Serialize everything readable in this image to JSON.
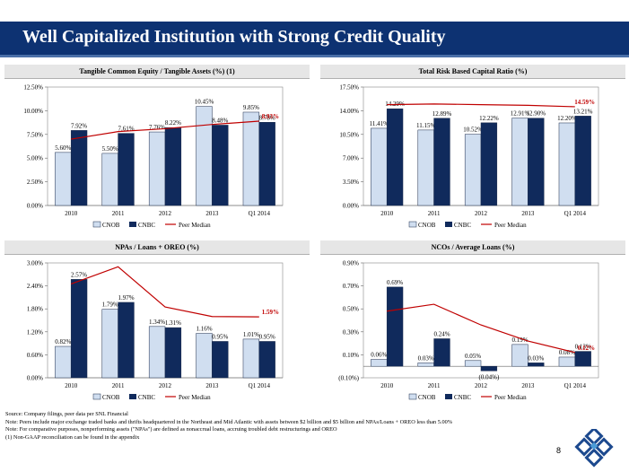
{
  "title": "Well Capitalized Institution with Strong Credit Quality",
  "page_number": "8",
  "footnotes": [
    "Source: Company filings, peer data per SNL Financial",
    "Note: Peers include major exchange traded banks and thrifts headquartered in the Northeast and Mid Atlantic with assets between $2 billion and $5 billion and NPAs/Loans + OREO less than 5.00%",
    "Note: For comparative purposes, nonperforming assets (\"NPAs\") are defined as nonaccrual loans, accruing troubled debt restructurings and OREO",
    "(1)    Non-GAAP reconciliation can be found in the appendix"
  ],
  "colors": {
    "cnob": "#d0def0",
    "cnbc": "#102a5c",
    "median": "#c00000",
    "title_bg": "#0d3272"
  },
  "chart_data": [
    {
      "type": "bar",
      "title": "Tangible Common Equity / Tangible Assets (%) (1)",
      "categories": [
        "2010",
        "2011",
        "2012",
        "2013",
        "Q1 2014"
      ],
      "series": [
        {
          "name": "CNOB",
          "values": [
            5.6,
            5.5,
            7.76,
            10.45,
            9.85
          ],
          "labels": [
            "5.60%",
            "5.50%",
            "7.76%",
            "10.45%",
            "9.85%"
          ]
        },
        {
          "name": "CNBC",
          "values": [
            7.92,
            7.61,
            8.22,
            8.48,
            8.78
          ],
          "labels": [
            "7.92%",
            "7.61%",
            "8.22%",
            "8.48%",
            "8.78%"
          ]
        },
        {
          "name": "Peer Median",
          "type": "line",
          "values": [
            7.0,
            7.8,
            8.1,
            8.55,
            8.9
          ]
        }
      ],
      "median_label": "8.93%",
      "ylim": [
        0,
        12.5
      ],
      "yticks": [
        "0.00%",
        "2.50%",
        "5.00%",
        "7.50%",
        "10.00%",
        "12.50%"
      ],
      "legend": [
        "CNOB",
        "CNBC",
        "Peer Median"
      ]
    },
    {
      "type": "bar",
      "title": "Total Risk Based Capital Ratio (%)",
      "categories": [
        "2010",
        "2011",
        "2012",
        "2013",
        "Q1 2014"
      ],
      "series": [
        {
          "name": "CNOB",
          "values": [
            11.41,
            11.15,
            10.52,
            12.91,
            12.2
          ],
          "labels": [
            "11.41%",
            "11.15%",
            "10.52%",
            "12.91%",
            "12.20%"
          ]
        },
        {
          "name": "CNBC",
          "values": [
            14.29,
            12.89,
            12.22,
            12.9,
            13.21
          ],
          "labels": [
            "14.29%",
            "12.89%",
            "12.22%",
            "12.90%",
            "13.21%"
          ]
        },
        {
          "name": "Peer Median",
          "type": "line",
          "values": [
            14.9,
            15.0,
            14.9,
            14.8,
            14.59
          ]
        }
      ],
      "median_label": "14.59%",
      "ylim": [
        0,
        17.5
      ],
      "yticks": [
        "0.00%",
        "3.50%",
        "7.00%",
        "10.50%",
        "14.00%",
        "17.50%"
      ],
      "legend": [
        "CNOB",
        "CNBC",
        "Peer Median"
      ]
    },
    {
      "type": "bar",
      "title": "NPAs / Loans + OREO (%)",
      "categories": [
        "2010",
        "2011",
        "2012",
        "2013",
        "Q1 2014"
      ],
      "series": [
        {
          "name": "CNOB",
          "values": [
            0.82,
            1.79,
            1.34,
            1.16,
            1.01
          ],
          "labels": [
            "0.82%",
            "1.79%",
            "1.34%",
            "1.16%",
            "1.01%"
          ]
        },
        {
          "name": "CNBC",
          "values": [
            2.57,
            1.97,
            1.31,
            0.95,
            0.95
          ],
          "labels": [
            "2.57%",
            "1.97%",
            "1.31%",
            "0.95%",
            "0.95%"
          ]
        },
        {
          "name": "Peer Median",
          "type": "line",
          "values": [
            2.45,
            2.9,
            1.85,
            1.6,
            1.59
          ]
        }
      ],
      "median_label": "1.59%",
      "ylim": [
        0,
        3.0
      ],
      "yticks": [
        "0.00%",
        "0.60%",
        "1.20%",
        "1.80%",
        "2.40%",
        "3.00%"
      ],
      "legend": [
        "CNOB",
        "CNBC",
        "Peer Median"
      ]
    },
    {
      "type": "bar",
      "title": "NCOs / Average Loans (%)",
      "categories": [
        "2010",
        "2011",
        "2012",
        "2013",
        "Q1 2014"
      ],
      "series": [
        {
          "name": "CNOB",
          "values": [
            0.06,
            0.03,
            0.05,
            0.19,
            0.08
          ],
          "labels": [
            "0.06%",
            "0.03%",
            "0.05%",
            "0.19%",
            "0.08%"
          ]
        },
        {
          "name": "CNBC",
          "values": [
            0.69,
            0.24,
            -0.04,
            0.03,
            0.13
          ],
          "labels": [
            "0.69%",
            "0.24%",
            "(0.04%)",
            "0.03%",
            "0.13%"
          ]
        },
        {
          "name": "Peer Median",
          "type": "line",
          "values": [
            0.48,
            0.54,
            0.36,
            0.22,
            0.12
          ]
        }
      ],
      "median_label": "0.12%",
      "ylim": [
        -0.1,
        0.9
      ],
      "yticks": [
        "(0.10%)",
        "0.10%",
        "0.30%",
        "0.50%",
        "0.70%",
        "0.90%"
      ],
      "legend": [
        "CNOB",
        "CNBC",
        "Peer Median"
      ]
    }
  ]
}
